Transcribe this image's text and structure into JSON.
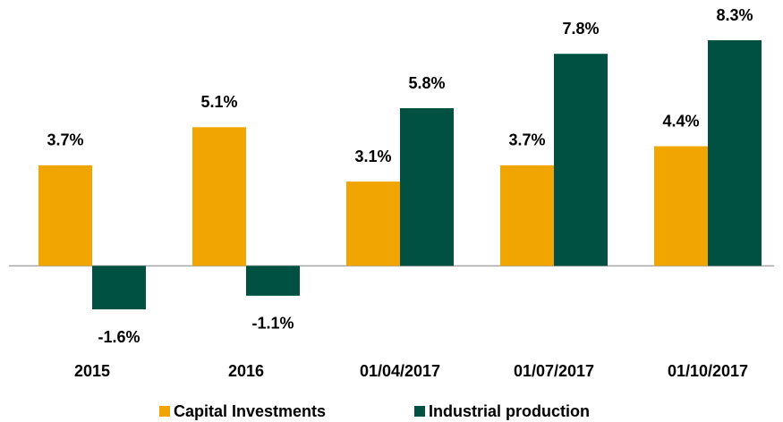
{
  "chart_data": {
    "type": "bar",
    "categories": [
      "2015",
      "2016",
      "01/04/2017",
      "01/07/2017",
      "01/10/2017"
    ],
    "series": [
      {
        "name": "Capital Investments",
        "color": "#f0a500",
        "values": [
          3.7,
          5.1,
          3.1,
          3.7,
          4.4
        ],
        "value_labels": [
          "3.7%",
          "5.1%",
          "3.1%",
          "3.7%",
          "4.4%"
        ]
      },
      {
        "name": "Industrial production",
        "color": "#005142",
        "values": [
          -1.6,
          -1.1,
          5.8,
          7.8,
          8.3
        ],
        "value_labels": [
          "-1.6%",
          "-1.1%",
          "5.8%",
          "7.8%",
          "8.3%"
        ]
      }
    ],
    "legend": "bottom"
  }
}
